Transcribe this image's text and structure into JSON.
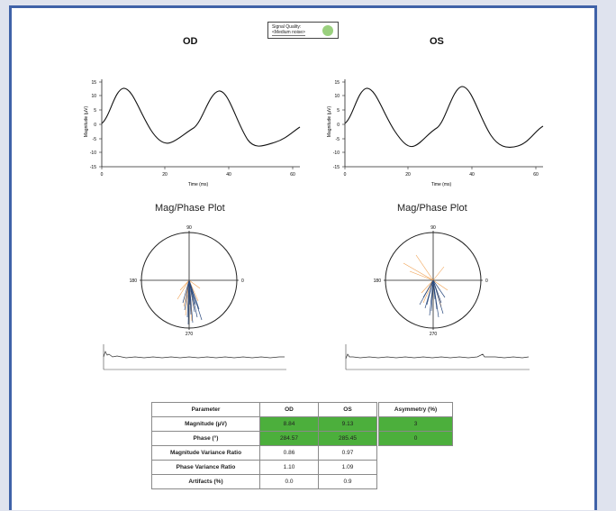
{
  "eyes": {
    "left_title": "OD",
    "right_title": "OS"
  },
  "signal_quality": {
    "line1": "Signal Quality:",
    "line2": "<Medium noise>",
    "indicator_color": "#9ad07e"
  },
  "waveform": {
    "y_label": "Magnitude (µV)",
    "x_label": "Time (ms)",
    "y_ticks": [
      "15",
      "10",
      "5",
      "0",
      "-5",
      "-10",
      "-15"
    ],
    "x_ticks": [
      "0",
      "20",
      "40",
      "60"
    ]
  },
  "mag_phase": {
    "title": "Mag/Phase Plot",
    "angle_labels": {
      "top": "90",
      "left": "180",
      "right": "0",
      "bottom": "270"
    }
  },
  "colors": {
    "pass_green": "#4caf3c",
    "frame_blue": "#3f62a8",
    "vector_blue": "#2b4a7e",
    "vector_orange": "#f0a050"
  },
  "table": {
    "headers": {
      "parameter": "Parameter",
      "od": "OD",
      "os": "OS",
      "asymmetry": "Asymmetry (%)"
    },
    "rows": [
      {
        "name": "Magnitude (µV)",
        "od": "8.84",
        "os": "9.13",
        "asym": "3"
      },
      {
        "name": "Phase (°)",
        "od": "284.57",
        "os": "285.45",
        "asym": "0"
      },
      {
        "name": "Magnitude Variance Ratio",
        "od": "0.86",
        "os": "0.97"
      },
      {
        "name": "Phase Variance Ratio",
        "od": "1.10",
        "os": "1.09"
      },
      {
        "name": "Artifacts (%)",
        "od": "0.0",
        "os": "0.9"
      }
    ]
  }
}
